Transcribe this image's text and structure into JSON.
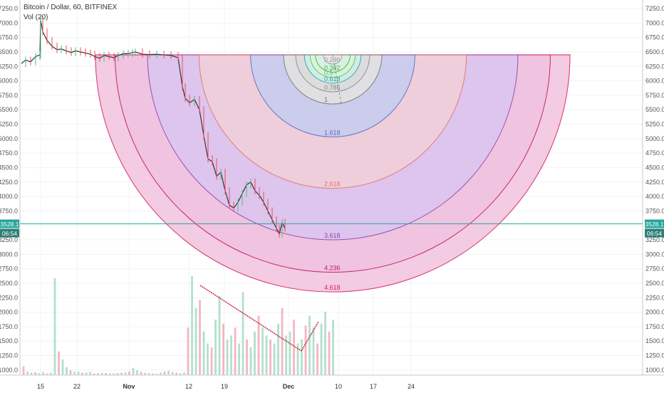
{
  "header": {
    "symbol_line": "Bitcoin / Dollar, 60, BITFINEX",
    "volume_line": "Vol (20)"
  },
  "chart_data": {
    "type": "candlestick",
    "y_axis": {
      "min": 850,
      "max": 7300,
      "ticks": [
        1000,
        1250,
        1500,
        1750,
        2000,
        2250,
        2500,
        2750,
        3000,
        3250,
        3500,
        3750,
        4000,
        4250,
        4500,
        4750,
        5000,
        5250,
        5500,
        5750,
        6000,
        6250,
        6500,
        6750,
        7000,
        7250
      ],
      "tick_labels": [
        "1000.0",
        "1250.0",
        "1500.0",
        "1750.0",
        "2000.0",
        "2250.0",
        "2500.0",
        "2750.0",
        "3000.0",
        "3250.0",
        "3500.0",
        "3750.0",
        "4000.0",
        "4250.0",
        "4500.0",
        "4750.0",
        "5000.0",
        "5250.0",
        "5500.0",
        "5750.0",
        "6000.0",
        "6250.0",
        "6500.0",
        "6750.0",
        "7000.0",
        "7250.0"
      ]
    },
    "x_axis": {
      "labels": [
        "15",
        "22",
        "Nov",
        "12",
        "19",
        "Dec",
        "10",
        "17",
        "24"
      ],
      "bold_labels": [
        "Nov",
        "Dec"
      ]
    },
    "price_path": [
      [
        0,
        6300
      ],
      [
        6,
        6360
      ],
      [
        13,
        6330
      ],
      [
        20,
        6420
      ],
      [
        26,
        6450
      ],
      [
        27,
        7050
      ],
      [
        30,
        6850
      ],
      [
        36,
        6700
      ],
      [
        43,
        6600
      ],
      [
        50,
        6540
      ],
      [
        56,
        6550
      ],
      [
        63,
        6520
      ],
      [
        70,
        6490
      ],
      [
        76,
        6520
      ],
      [
        83,
        6500
      ],
      [
        90,
        6480
      ],
      [
        97,
        6460
      ],
      [
        103,
        6420
      ],
      [
        110,
        6390
      ],
      [
        116,
        6440
      ],
      [
        123,
        6420
      ],
      [
        130,
        6400
      ],
      [
        136,
        6440
      ],
      [
        143,
        6470
      ],
      [
        150,
        6470
      ],
      [
        156,
        6490
      ],
      [
        160,
        6500
      ],
      [
        170,
        6460
      ],
      [
        180,
        6455
      ],
      [
        190,
        6460
      ],
      [
        200,
        6450
      ],
      [
        210,
        6440
      ],
      [
        220,
        6400
      ],
      [
        226,
        5900
      ],
      [
        230,
        5700
      ],
      [
        236,
        5620
      ],
      [
        243,
        5680
      ],
      [
        250,
        5500
      ],
      [
        256,
        5050
      ],
      [
        262,
        4650
      ],
      [
        268,
        4600
      ],
      [
        274,
        4350
      ],
      [
        280,
        4420
      ],
      [
        286,
        4100
      ],
      [
        292,
        3850
      ],
      [
        298,
        3800
      ],
      [
        304,
        3900
      ],
      [
        310,
        4050
      ],
      [
        316,
        4200
      ],
      [
        322,
        4250
      ],
      [
        328,
        4100
      ],
      [
        334,
        4020
      ],
      [
        340,
        3900
      ],
      [
        346,
        3750
      ],
      [
        352,
        3600
      ],
      [
        358,
        3450
      ],
      [
        362,
        3350
      ],
      [
        366,
        3550
      ],
      [
        370,
        3450
      ]
    ],
    "price_path_x_range": [
      0,
      440
    ],
    "last_price": {
      "value": 3528.1,
      "label": "3528.1",
      "countdown": "06:54"
    },
    "volume": {
      "scale_max": 2700,
      "bars": [
        220,
        90,
        60,
        70,
        50,
        80,
        40,
        60,
        2450,
        600,
        400,
        200,
        120,
        80,
        90,
        60,
        70,
        80,
        40,
        50,
        60,
        55,
        45,
        40,
        50,
        60,
        70,
        90,
        180,
        120,
        80,
        60,
        50,
        40,
        35,
        60,
        90,
        110,
        80,
        60,
        50,
        70,
        1200,
        2500,
        1700,
        1900,
        1100,
        800,
        700,
        1400,
        2000,
        1300,
        900,
        1000,
        1200,
        800,
        2100,
        900,
        700,
        1100,
        1500,
        1200,
        1000,
        900,
        800,
        1300,
        1700,
        1000,
        1100,
        1400,
        800,
        900,
        1250,
        1500,
        1200,
        800,
        1300,
        1600,
        1100,
        1400
      ]
    },
    "fib_arcs": {
      "center_price": 6450,
      "levels": [
        {
          "label": "0.236",
          "radius_price": 160,
          "fill": "#e8e8e8"
        },
        {
          "label": "0.382",
          "radius_price": 300,
          "fill": "#d8f0e4"
        },
        {
          "label": "0.5",
          "radius_price": 390,
          "fill": "#d8f5d8"
        },
        {
          "label": "0.618",
          "radius_price": 490,
          "fill": "#cfeee8"
        },
        {
          "label": "0.786",
          "radius_price": 640,
          "fill": "#dcdcdc"
        },
        {
          "label": "1",
          "radius_price": 850,
          "fill": "#e3e3e3"
        },
        {
          "label": "1.618",
          "radius_price": 1420,
          "fill": "#c9ccef"
        },
        {
          "label": "2.618",
          "radius_price": 2310,
          "fill": "#f0cfd8"
        },
        {
          "label": "3.618",
          "radius_price": 3200,
          "fill": "#dbc6ef"
        },
        {
          "label": "4.236",
          "radius_price": 3760,
          "fill": "#f0c3e0"
        },
        {
          "label": "4.618",
          "radius_price": 4100,
          "fill": "#f2c6e0"
        }
      ]
    },
    "colors": {
      "up": "#53b987",
      "down": "#eb4d5c",
      "last_price_line": "#26a69a",
      "annotation_line": "#cc2233"
    }
  }
}
